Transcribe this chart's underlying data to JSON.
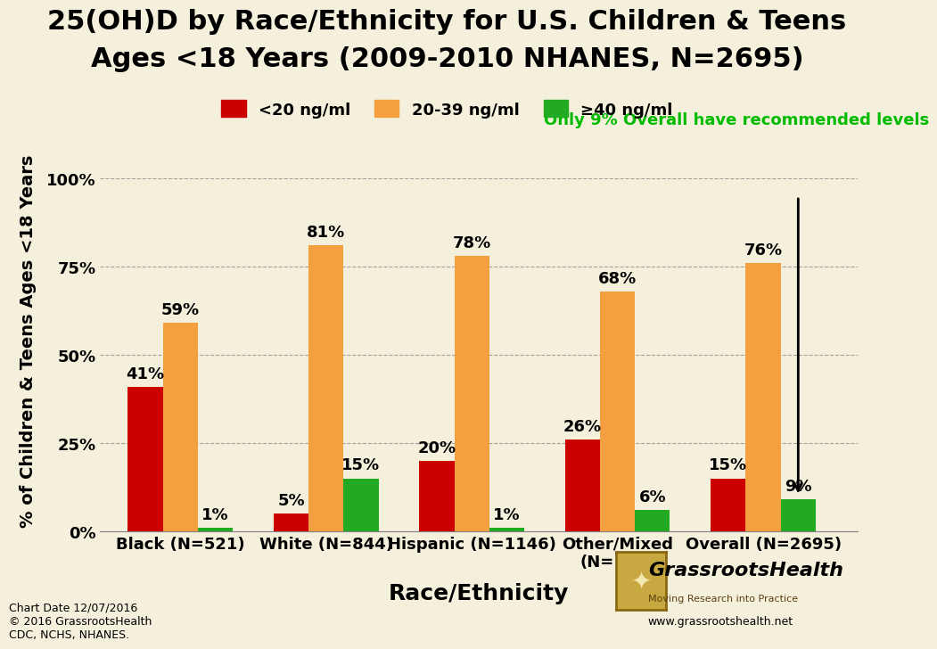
{
  "title_line1": "25(OH)D by Race/Ethnicity for U.S. Children & Teens",
  "title_line2": "Ages <18 Years (2009-2010 NHANES, N=2695)",
  "xlabel": "Race/Ethnicity",
  "ylabel": "% of Children & Teens Ages <18 Years",
  "background_color": "#f5f0dc",
  "categories": [
    "Black (N=521)",
    "White (N=844)",
    "Hispanic (N=1146)",
    "Other/Mixed\n(N=184)",
    "Overall (N=2695)"
  ],
  "series_order": [
    "<20 ng/ml",
    "20-39 ng/ml",
    "≥40 ng/ml"
  ],
  "series": {
    "<20 ng/ml": {
      "values": [
        41,
        5,
        20,
        26,
        15
      ],
      "color": "#cc0000"
    },
    "20-39 ng/ml": {
      "values": [
        59,
        81,
        78,
        68,
        76
      ],
      "color": "#f5a040"
    },
    "≥40 ng/ml": {
      "values": [
        1,
        15,
        1,
        6,
        9
      ],
      "color": "#22aa22"
    }
  },
  "ylim": [
    0,
    108
  ],
  "yticks": [
    0,
    25,
    50,
    75,
    100
  ],
  "ytick_labels": [
    "0%",
    "25%",
    "50%",
    "75%",
    "100%"
  ],
  "annotation_text": "Only 9% Overall have recommended levels",
  "annotation_color": "#00bb00",
  "footer_text": "Chart Date 12/07/2016\n© 2016 GrassrootsHealth\nCDC, NCHS, NHANES.",
  "website_text": "www.grassrootshealth.net",
  "grassroots_label": "GrassrootsHealth",
  "grassroots_sublabel": "Moving Research into Practice",
  "bar_width": 0.24,
  "title_fontsize": 22,
  "label_fontsize": 14,
  "tick_fontsize": 13,
  "bar_label_fontsize": 13,
  "legend_fontsize": 13
}
